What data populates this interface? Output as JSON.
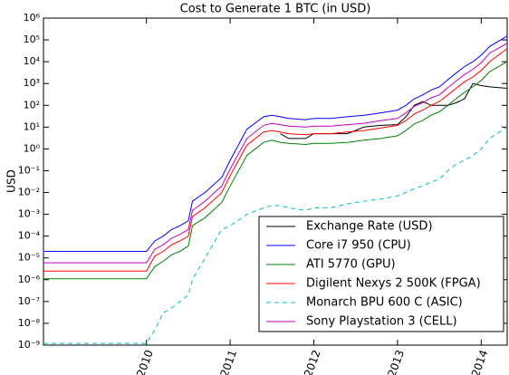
{
  "chart_data": {
    "type": "line",
    "title": "Cost to Generate 1 BTC (in USD)",
    "y_label": "USD",
    "log_y": true,
    "legend": "lower right",
    "xlim": [
      2008.77,
      2014.31
    ],
    "xticks": [
      2010,
      2011,
      2012,
      2013,
      2014
    ],
    "ylim": [
      1e-09,
      1000000
    ],
    "yticks": [
      {
        "value": 1000000,
        "label": "10⁶"
      },
      {
        "value": 100000,
        "label": "10⁵"
      },
      {
        "value": 10000,
        "label": "10⁴"
      },
      {
        "value": 1000,
        "label": "10³"
      },
      {
        "value": 100,
        "label": "10²"
      },
      {
        "value": 10,
        "label": "10¹"
      },
      {
        "value": 1,
        "label": "10⁰"
      },
      {
        "value": 0.1,
        "label": "10⁻¹"
      },
      {
        "value": 0.01,
        "label": "10⁻²"
      },
      {
        "value": 0.001,
        "label": "10⁻³"
      },
      {
        "value": 0.0001,
        "label": "10⁻⁴"
      },
      {
        "value": 1e-05,
        "label": "10⁻⁵"
      },
      {
        "value": 1e-06,
        "label": "10⁻⁶"
      },
      {
        "value": 1e-07,
        "label": "10⁻⁷"
      },
      {
        "value": 1e-08,
        "label": "10⁻⁸"
      },
      {
        "value": 1e-09,
        "label": "10⁻⁹"
      }
    ],
    "x": [
      2008.77,
      2010.0,
      2010.1,
      2010.2,
      2010.3,
      2010.4,
      2010.5,
      2010.55,
      2010.7,
      2010.9,
      2011.0,
      2011.2,
      2011.4,
      2011.5,
      2011.6,
      2011.7,
      2011.9,
      2012.0,
      2012.2,
      2012.4,
      2012.6,
      2012.8,
      2013.0,
      2013.1,
      2013.2,
      2013.3,
      2013.4,
      2013.5,
      2013.6,
      2013.7,
      2013.8,
      2013.9,
      2014.0,
      2014.1,
      2014.31
    ],
    "series": [
      {
        "name": "Exchange Rate (USD)",
        "color": "#000000",
        "dashed": false,
        "values": [
          null,
          null,
          null,
          null,
          null,
          null,
          null,
          null,
          null,
          null,
          null,
          null,
          null,
          null,
          5,
          3,
          3,
          5,
          5,
          5,
          10,
          12,
          13,
          30,
          100,
          150,
          100,
          100,
          100,
          130,
          200,
          1000,
          800,
          700,
          600
        ]
      },
      {
        "name": "Core i7 950  (CPU)",
        "color": "#0000ff",
        "dashed": false,
        "values": [
          2e-05,
          2e-05,
          6e-05,
          0.0001,
          0.0002,
          0.0003,
          0.0005,
          0.004,
          0.01,
          0.05,
          0.3,
          8,
          30,
          35,
          30,
          25,
          22,
          25,
          25,
          30,
          35,
          45,
          60,
          100,
          200,
          300,
          500,
          700,
          1500,
          3000,
          6000,
          10000,
          20000,
          50000,
          150000
        ]
      },
      {
        "name": "ATI 5770  (GPU)",
        "color": "#008000",
        "dashed": false,
        "values": [
          1.1e-06,
          1.1e-06,
          4e-06,
          7e-06,
          1.4e-05,
          2e-05,
          3.5e-05,
          0.0003,
          0.0007,
          0.0035,
          0.02,
          0.5,
          2,
          2.5,
          2,
          1.8,
          1.6,
          1.8,
          1.8,
          2,
          2.5,
          3,
          4,
          7,
          14,
          20,
          35,
          50,
          100,
          200,
          400,
          700,
          1400,
          3500,
          10000
        ]
      },
      {
        "name": "Digilent Nexys 2 500K  (FPGA)",
        "color": "#ff0000",
        "dashed": false,
        "values": [
          2.5e-06,
          2.5e-06,
          1.2e-05,
          2e-05,
          4e-05,
          6e-05,
          0.0001,
          0.0008,
          0.002,
          0.01,
          0.06,
          1.5,
          6,
          7,
          6,
          5,
          4.5,
          5,
          5,
          6,
          7,
          9,
          12,
          20,
          40,
          60,
          100,
          150,
          300,
          600,
          1200,
          2000,
          4000,
          10000,
          40000
        ]
      },
      {
        "name": "Monarch BPU 600 C  (ASIC)",
        "color": "#00bfbf",
        "dashed": true,
        "values": [
          1.2e-09,
          1.2e-09,
          5e-09,
          3e-08,
          5e-08,
          1e-07,
          2e-07,
          1e-06,
          1e-05,
          0.0002,
          0.0003,
          0.001,
          0.002,
          0.0025,
          0.0025,
          0.002,
          0.0015,
          0.002,
          0.002,
          0.003,
          0.004,
          0.005,
          0.007,
          0.01,
          0.015,
          0.02,
          0.03,
          0.04,
          0.1,
          0.2,
          0.3,
          0.5,
          1,
          3,
          10
        ]
      },
      {
        "name": "Sony Playstation 3  (CELL)",
        "color": "#bf00bf",
        "dashed": false,
        "values": [
          6e-06,
          6e-06,
          2.5e-05,
          4e-05,
          8e-05,
          0.00012,
          0.0002,
          0.0015,
          0.004,
          0.02,
          0.12,
          3,
          12,
          15,
          13,
          11,
          10,
          11,
          11,
          13,
          15,
          20,
          25,
          45,
          90,
          130,
          220,
          300,
          650,
          1300,
          2600,
          4500,
          9000,
          25000,
          70000
        ]
      }
    ]
  }
}
